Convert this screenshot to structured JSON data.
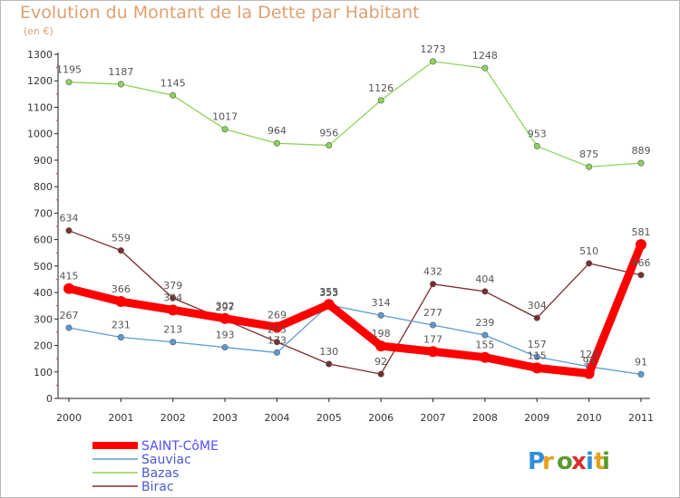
{
  "chart_data": {
    "type": "line",
    "title": "Evolution du Montant de la Dette par Habitant",
    "subtitle": "(en €)",
    "x": [
      "2000",
      "2001",
      "2002",
      "2003",
      "2004",
      "2005",
      "2006",
      "2007",
      "2008",
      "2009",
      "2010",
      "2011"
    ],
    "ylim": [
      0,
      1300
    ],
    "yticks": [
      0,
      100,
      200,
      300,
      400,
      500,
      600,
      700,
      800,
      900,
      1000,
      1100,
      1200,
      1300
    ],
    "grid": false,
    "legend_placement": "bottom-left",
    "series": [
      {
        "name": "SAINT-CôME",
        "color": "#ff0000",
        "values": [
          415,
          366,
          334,
          302,
          269,
          355,
          198,
          177,
          155,
          115,
          94,
          581
        ],
        "labels": [
          "415",
          "366",
          "334",
          "302",
          "269",
          "355",
          "198",
          "177",
          "155",
          "115",
          "94",
          "581"
        ]
      },
      {
        "name": "Sauviac",
        "color": "#5b9bd5",
        "values": [
          267,
          231,
          213,
          193,
          173,
          353,
          314,
          277,
          239,
          157,
          120,
          91
        ],
        "labels": [
          "267",
          "231",
          "213",
          "193",
          "173",
          "353",
          "314",
          "277",
          "239",
          "157",
          "120",
          "91"
        ]
      },
      {
        "name": "Bazas",
        "color": "#8fd35a",
        "values": [
          1195,
          1187,
          1145,
          1017,
          964,
          956,
          1126,
          1273,
          1248,
          953,
          875,
          889
        ],
        "labels": [
          "1195",
          "1187",
          "1145",
          "1017",
          "964",
          "956",
          "1126",
          "1273",
          "1248",
          "953",
          "875",
          "889"
        ]
      },
      {
        "name": "Birac",
        "color": "#7b2c2c",
        "values": [
          634,
          559,
          379,
          297,
          213,
          130,
          92,
          432,
          404,
          304,
          510,
          466
        ],
        "labels": [
          "634",
          "559",
          "379",
          "297",
          "213",
          "130",
          "92",
          "432",
          "404",
          "304",
          "510",
          "466"
        ]
      }
    ]
  },
  "logo": {
    "text": "Proxiti"
  }
}
